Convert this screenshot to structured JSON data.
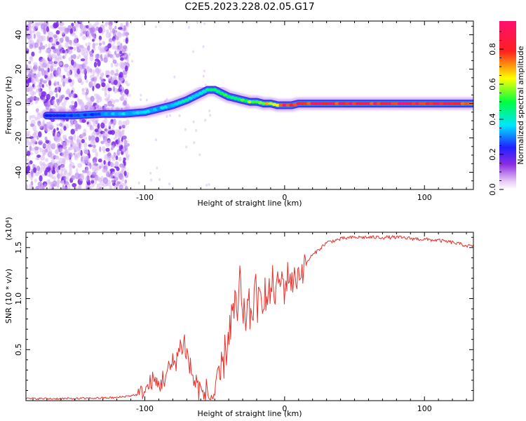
{
  "title": "C2E5.2023.228.02.05.G17",
  "chart_data": [
    {
      "type": "heatmap",
      "xlabel": "Height of straight line (km)",
      "ylabel": "Frequency (Hz)",
      "xlim": [
        -185,
        135
      ],
      "ylim": [
        -50,
        48
      ],
      "xticks": [
        -100,
        0,
        100
      ],
      "yticks": [
        -40,
        -20,
        0,
        20,
        40
      ],
      "grid": false,
      "colorbar": {
        "label": "Normalized spectral amplitude",
        "range": [
          0,
          0.96
        ],
        "ticks": [
          0.0,
          0.2,
          0.4,
          0.6,
          0.8
        ],
        "colors": [
          "#f2dcf8",
          "#8a2be2",
          "#1010ff",
          "#00e5ff",
          "#00ff40",
          "#ffff00",
          "#ff2020",
          "#ff1070"
        ]
      },
      "ridge": {
        "x": [
          -170,
          -150,
          -130,
          -115,
          -100,
          -90,
          -80,
          -70,
          -60,
          -55,
          -50,
          -45,
          -40,
          -35,
          -30,
          -25,
          -20,
          -15,
          -10,
          -5,
          0,
          5,
          10,
          20,
          40,
          60,
          80,
          100,
          120,
          135
        ],
        "y": [
          -7,
          -7,
          -6,
          -6,
          -5,
          -3,
          -1,
          2,
          6,
          8,
          8,
          6,
          4,
          3,
          2,
          1,
          1,
          0,
          0,
          -1,
          -1,
          -1,
          0,
          0,
          0,
          0,
          0,
          0,
          0,
          0
        ],
        "amplitude": [
          0.25,
          0.3,
          0.35,
          0.4,
          0.45,
          0.4,
          0.4,
          0.45,
          0.45,
          0.5,
          0.55,
          0.55,
          0.55,
          0.55,
          0.6,
          0.6,
          0.65,
          0.7,
          0.75,
          0.8,
          0.82,
          0.85,
          0.85,
          0.88,
          0.9,
          0.9,
          0.9,
          0.9,
          0.9,
          0.9
        ]
      },
      "noise_region_x": [
        -185,
        -112
      ]
    },
    {
      "type": "line",
      "xlabel": "Height of straight line (km)",
      "ylabel": "SNR (10 * v/v)",
      "y_multiplier": "(x10⁴)",
      "xlim": [
        -185,
        135
      ],
      "ylim": [
        0,
        1.65
      ],
      "xticks": [
        -100,
        0,
        100
      ],
      "yticks": [
        0.5,
        1.0,
        1.5
      ],
      "ytick_labels": [
        "0.5",
        "1.0",
        "1.5"
      ],
      "grid": false,
      "color": "#e8302a",
      "series": [
        {
          "x": [
            -185,
            -150,
            -120,
            -105,
            -98,
            -95,
            -90,
            -85,
            -80,
            -75,
            -72,
            -70,
            -66,
            -62,
            -58,
            -52,
            -48,
            -45,
            -42,
            -39,
            -36,
            -34,
            -32,
            -30,
            -27,
            -24,
            -21,
            -18,
            -15,
            -12,
            -9,
            -6,
            -3,
            0,
            3,
            6,
            10,
            14,
            18,
            22,
            26,
            30,
            36,
            42,
            50,
            60,
            70,
            80,
            90,
            100,
            110,
            120,
            130,
            135
          ],
          "y": [
            0.02,
            0.02,
            0.03,
            0.06,
            0.12,
            0.2,
            0.15,
            0.25,
            0.35,
            0.5,
            0.6,
            0.45,
            0.25,
            0.1,
            0.06,
            0.04,
            0.1,
            0.3,
            0.5,
            0.75,
            0.9,
            0.8,
            1.2,
            0.7,
            0.9,
            0.85,
            1.05,
            0.9,
            1.1,
            0.95,
            1.15,
            1.05,
            1.2,
            1.1,
            1.25,
            1.15,
            1.25,
            1.3,
            1.4,
            1.45,
            1.5,
            1.55,
            1.57,
            1.59,
            1.6,
            1.6,
            1.6,
            1.6,
            1.59,
            1.58,
            1.57,
            1.55,
            1.52,
            1.51
          ]
        }
      ]
    }
  ]
}
